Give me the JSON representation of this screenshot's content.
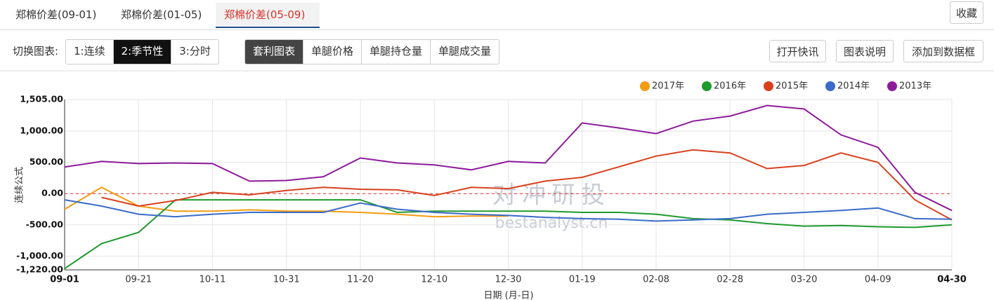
{
  "tabs": [
    "郑棉价差(09-01)",
    "郑棉价差(01-05)",
    "郑棉价差(05-09)"
  ],
  "favorite": "收藏",
  "switch_label": "切换图表:",
  "switch_buttons": [
    "1:连续",
    "2:季节性",
    "3:分时"
  ],
  "view_buttons": [
    "套利图表",
    "单腿价格",
    "单腿持仓量",
    "单腿成交量"
  ],
  "action_buttons": [
    "打开快讯",
    "图表说明",
    "添加到数据框"
  ],
  "watermark": {
    "title": "对冲研投",
    "url": "bestanalyst.cn"
  },
  "chart_data": {
    "type": "line",
    "y_label": "连续公式",
    "x_label": "日期 (月-日)",
    "categories": [
      "09-01",
      null,
      "09-21",
      null,
      "10-11",
      null,
      "10-31",
      null,
      "11-20",
      null,
      "12-10",
      null,
      "12-30",
      null,
      "01-19",
      null,
      "02-08",
      null,
      "02-28",
      null,
      "03-20",
      null,
      "04-09",
      null,
      "04-30"
    ],
    "ylim": [
      -1220,
      1505
    ],
    "yticks": [
      {
        "value": 1505,
        "label": "1,505.00"
      },
      {
        "value": 1000,
        "label": "1,000.00"
      },
      {
        "value": 500,
        "label": "500.00"
      },
      {
        "value": 0,
        "label": "0.00"
      },
      {
        "value": -500,
        "label": "-500.00"
      },
      {
        "value": -1000,
        "label": "-1,000.00"
      },
      {
        "value": -1220,
        "label": "-1,220.00"
      }
    ],
    "grid": true,
    "legend": "top-right",
    "series": [
      {
        "name": "2017年",
        "color": "#f39c12",
        "values": [
          -250,
          100,
          -200,
          -280,
          -280,
          -260,
          -280,
          -280,
          -300,
          -330,
          -370,
          -360,
          -360,
          null,
          null,
          null,
          null,
          null,
          null,
          null,
          null,
          null,
          null,
          null,
          null
        ]
      },
      {
        "name": "2016年",
        "color": "#1f9a2e",
        "values": [
          -1200,
          -800,
          -620,
          -100,
          -100,
          -100,
          -100,
          -100,
          -100,
          -300,
          -280,
          -280,
          -280,
          -280,
          -300,
          -300,
          -330,
          -400,
          -420,
          -480,
          -520,
          -510,
          -530,
          -540,
          -500
        ]
      },
      {
        "name": "2015年",
        "color": "#d9411e",
        "values": [
          null,
          -60,
          -200,
          -110,
          20,
          -20,
          50,
          100,
          70,
          60,
          -30,
          100,
          80,
          200,
          260,
          430,
          600,
          700,
          650,
          400,
          450,
          650,
          500,
          -100,
          -420
        ]
      },
      {
        "name": "2014年",
        "color": "#3a6bc9",
        "values": [
          -100,
          -200,
          -330,
          -370,
          -330,
          -300,
          -300,
          -300,
          -150,
          -250,
          -300,
          -330,
          -350,
          -380,
          -400,
          -410,
          -440,
          -420,
          -400,
          -330,
          -300,
          -270,
          -230,
          -400,
          -410
        ]
      },
      {
        "name": "2013年",
        "color": "#8e1a9c",
        "values": [
          425,
          515,
          480,
          490,
          480,
          200,
          210,
          270,
          570,
          490,
          460,
          380,
          515,
          490,
          1130,
          1050,
          960,
          1160,
          1240,
          1410,
          1355,
          940,
          740,
          20,
          -270
        ]
      }
    ]
  }
}
